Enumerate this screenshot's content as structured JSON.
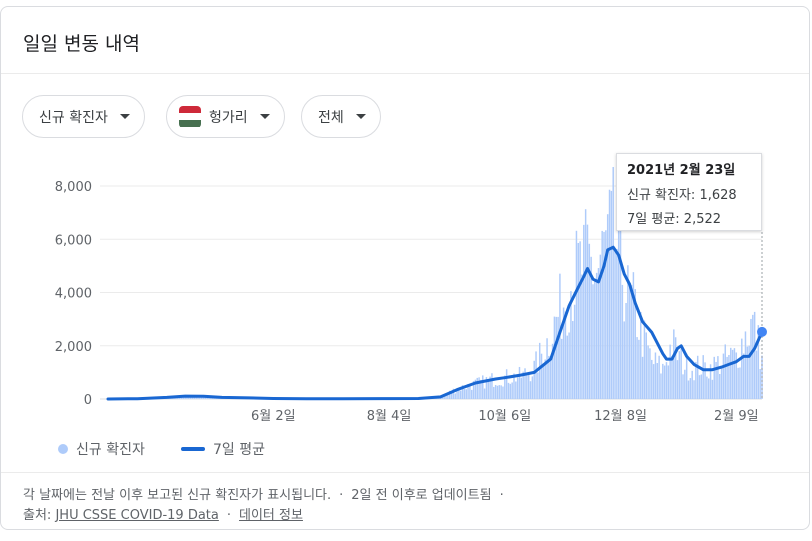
{
  "title": "일일 변동 내역",
  "filters": {
    "metric": "신규 확진자",
    "country": "헝가리",
    "range": "전체",
    "flag_colors": [
      "#CE2939",
      "#FFFFFF",
      "#477050"
    ]
  },
  "tooltip": {
    "date": "2021년 2월 23일",
    "cases_label": "신규 확진자: 1,628",
    "avg_label": "7일 평균: 2,522"
  },
  "legend": {
    "bars": "신규 확진자",
    "line": "7일 평균"
  },
  "colors": {
    "bar": "#aecbfa",
    "line": "#1967d2",
    "grid": "#ebebeb"
  },
  "footer": {
    "line1": "각 날짜에는 전날 이후 보고된 신규 확진자가 표시됩니다.",
    "line1_b": "2일 전 이후로 업데이트됨",
    "source_prefix": "출처:",
    "source_link": "JHU CSSE COVID-19 Data",
    "info_link": "데이터 정보"
  },
  "chart_data": {
    "type": "bar",
    "title": "",
    "xlabel": "",
    "ylabel": "",
    "ylim": [
      0,
      8000
    ],
    "yticks": [
      "8,000",
      "6,000",
      "4,000",
      "2,000",
      "0"
    ],
    "ytick_values": [
      8000,
      6000,
      4000,
      2000,
      0
    ],
    "xticks": [
      "6월 2일",
      "8월 4일",
      "10월 6일",
      "12월 8일",
      "2월 9일"
    ],
    "xtick_dates": [
      "2020-06-02",
      "2020-08-04",
      "2020-10-06",
      "2020-12-08",
      "2021-02-09"
    ],
    "date_range": [
      "2020-03-04",
      "2021-02-23"
    ],
    "highlight": {
      "date": "2021-02-23",
      "cases": 1628,
      "avg": 2522
    },
    "series": [
      {
        "name": "신규 확진자",
        "type": "bar",
        "color": "#aecbfa",
        "points": [
          [
            "2020-03-04",
            5
          ],
          [
            "2020-03-20",
            20
          ],
          [
            "2020-04-05",
            60
          ],
          [
            "2020-04-15",
            100
          ],
          [
            "2020-04-25",
            90
          ],
          [
            "2020-05-05",
            50
          ],
          [
            "2020-05-20",
            40
          ],
          [
            "2020-06-02",
            20
          ],
          [
            "2020-06-20",
            10
          ],
          [
            "2020-07-10",
            10
          ],
          [
            "2020-08-04",
            15
          ],
          [
            "2020-08-20",
            30
          ],
          [
            "2020-09-01",
            100
          ],
          [
            "2020-09-10",
            400
          ],
          [
            "2020-09-20",
            600
          ],
          [
            "2020-10-01",
            800
          ],
          [
            "2020-10-06",
            850
          ],
          [
            "2020-10-15",
            900
          ],
          [
            "2020-10-22",
            1200
          ],
          [
            "2020-10-31",
            2500
          ],
          [
            "2020-11-05",
            3500
          ],
          [
            "2020-11-10",
            4500
          ],
          [
            "2020-11-15",
            5000
          ],
          [
            "2020-11-20",
            5500
          ],
          [
            "2020-11-25",
            5000
          ],
          [
            "2020-11-30",
            6000
          ],
          [
            "2020-12-04",
            6500
          ],
          [
            "2020-12-08",
            5500
          ],
          [
            "2020-12-12",
            4000
          ],
          [
            "2020-12-16",
            3500
          ],
          [
            "2020-12-20",
            2500
          ],
          [
            "2020-12-25",
            1500
          ],
          [
            "2020-12-31",
            1200
          ],
          [
            "2021-01-05",
            2200
          ],
          [
            "2021-01-10",
            1500
          ],
          [
            "2021-01-15",
            1200
          ],
          [
            "2021-01-20",
            1300
          ],
          [
            "2021-01-25",
            1200
          ],
          [
            "2021-01-30",
            1400
          ],
          [
            "2021-02-04",
            1600
          ],
          [
            "2021-02-09",
            1700
          ],
          [
            "2021-02-14",
            2500
          ],
          [
            "2021-02-18",
            3000
          ],
          [
            "2021-02-23",
            1628
          ]
        ]
      },
      {
        "name": "7일 평균",
        "type": "line",
        "color": "#1967d2",
        "points": [
          [
            "2020-03-04",
            0
          ],
          [
            "2020-03-20",
            10
          ],
          [
            "2020-04-05",
            60
          ],
          [
            "2020-04-15",
            110
          ],
          [
            "2020-04-25",
            100
          ],
          [
            "2020-05-05",
            60
          ],
          [
            "2020-05-20",
            40
          ],
          [
            "2020-06-02",
            20
          ],
          [
            "2020-06-20",
            10
          ],
          [
            "2020-07-10",
            10
          ],
          [
            "2020-08-04",
            15
          ],
          [
            "2020-08-20",
            20
          ],
          [
            "2020-09-01",
            80
          ],
          [
            "2020-09-10",
            350
          ],
          [
            "2020-09-20",
            600
          ],
          [
            "2020-10-01",
            750
          ],
          [
            "2020-10-06",
            800
          ],
          [
            "2020-10-15",
            900
          ],
          [
            "2020-10-22",
            1000
          ],
          [
            "2020-10-31",
            1500
          ],
          [
            "2020-11-05",
            2500
          ],
          [
            "2020-11-10",
            3500
          ],
          [
            "2020-11-15",
            4200
          ],
          [
            "2020-11-18",
            4600
          ],
          [
            "2020-11-20",
            4900
          ],
          [
            "2020-11-23",
            4500
          ],
          [
            "2020-11-26",
            4400
          ],
          [
            "2020-11-29",
            5000
          ],
          [
            "2020-12-01",
            5600
          ],
          [
            "2020-12-04",
            5700
          ],
          [
            "2020-12-07",
            5400
          ],
          [
            "2020-12-10",
            4700
          ],
          [
            "2020-12-13",
            4300
          ],
          [
            "2020-12-16",
            3600
          ],
          [
            "2020-12-20",
            2900
          ],
          [
            "2020-12-25",
            2500
          ],
          [
            "2020-12-31",
            1700
          ],
          [
            "2021-01-02",
            1500
          ],
          [
            "2021-01-05",
            1500
          ],
          [
            "2021-01-08",
            1900
          ],
          [
            "2021-01-10",
            2000
          ],
          [
            "2021-01-13",
            1600
          ],
          [
            "2021-01-17",
            1300
          ],
          [
            "2021-01-22",
            1100
          ],
          [
            "2021-01-27",
            1100
          ],
          [
            "2021-02-01",
            1200
          ],
          [
            "2021-02-05",
            1300
          ],
          [
            "2021-02-09",
            1400
          ],
          [
            "2021-02-13",
            1600
          ],
          [
            "2021-02-16",
            1600
          ],
          [
            "2021-02-19",
            1900
          ],
          [
            "2021-02-23",
            2522
          ]
        ]
      }
    ]
  }
}
